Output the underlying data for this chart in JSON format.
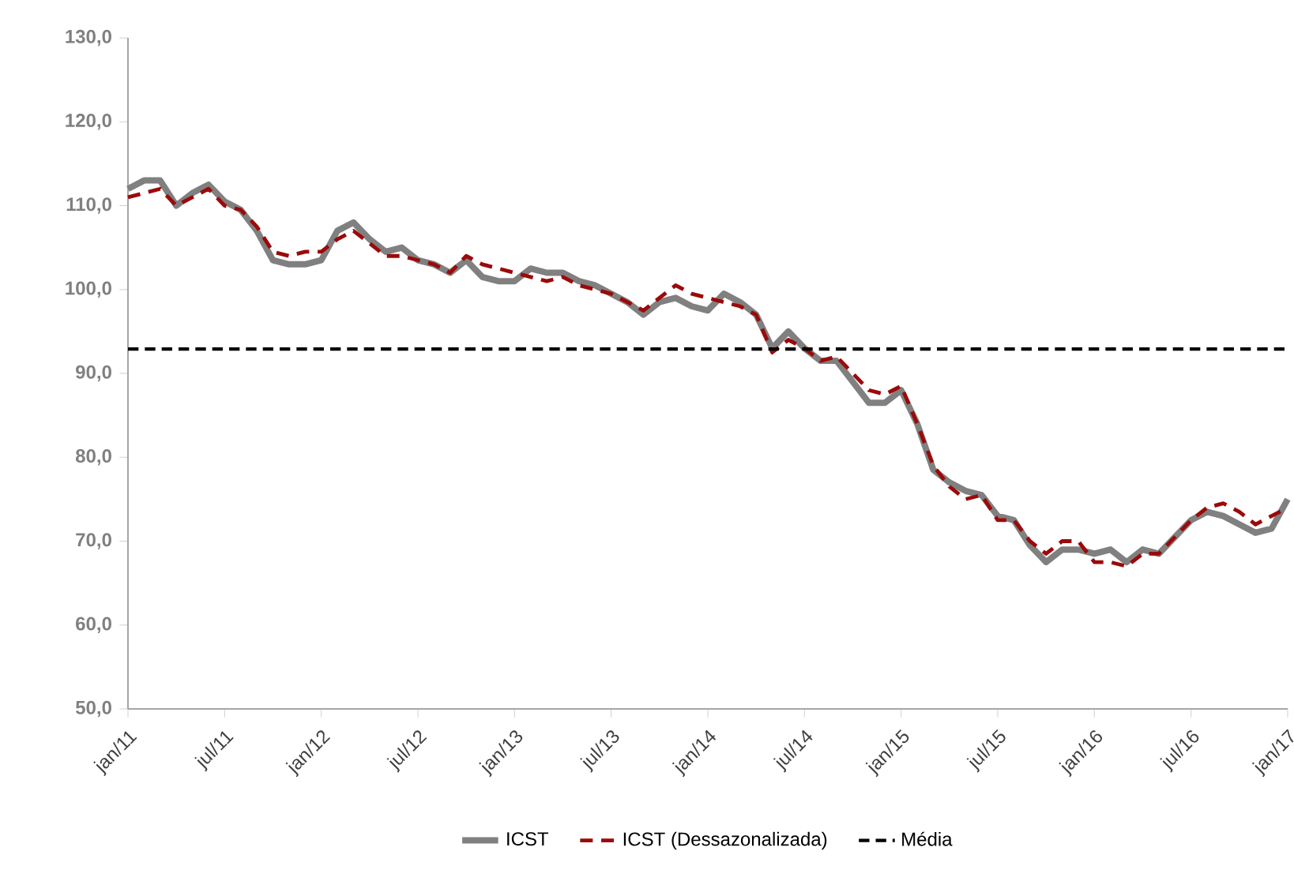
{
  "chart_data": {
    "type": "line",
    "categories": [
      "jan/11",
      null,
      null,
      null,
      null,
      null,
      "jul/11",
      null,
      null,
      null,
      null,
      null,
      "jan/12",
      null,
      null,
      null,
      null,
      null,
      "jul/12",
      null,
      null,
      null,
      null,
      null,
      "jan/13",
      null,
      null,
      null,
      null,
      null,
      "jul/13",
      null,
      null,
      null,
      null,
      null,
      "jan/14",
      null,
      null,
      null,
      null,
      null,
      "jul/14",
      null,
      null,
      null,
      null,
      null,
      "jan/15",
      null,
      null,
      null,
      null,
      null,
      "jul/15",
      null,
      null,
      null,
      null,
      null,
      "jan/16",
      null,
      null,
      null,
      null,
      null,
      "jul/16",
      null,
      null,
      null,
      null,
      null,
      "jan/17"
    ],
    "series": [
      {
        "name": "ICST",
        "color": "#808080",
        "line_style": "solid",
        "values": [
          112,
          113,
          113,
          110,
          111.5,
          112.5,
          110.5,
          109.5,
          107,
          103.5,
          103,
          103,
          103.5,
          107,
          108,
          106,
          104.5,
          105,
          103.5,
          103,
          102,
          103.5,
          101.5,
          101,
          101,
          102.5,
          102,
          102,
          101,
          100.5,
          99.5,
          98.5,
          97,
          98.5,
          99,
          98,
          97.5,
          99.5,
          98.5,
          97,
          93,
          95,
          93,
          91.5,
          91.5,
          89,
          86.5,
          86.5,
          88,
          84,
          78.5,
          77,
          76,
          75.5,
          73,
          72.5,
          69.5,
          67.5,
          69,
          69,
          68.5,
          69,
          67.5,
          69,
          68.5,
          70.5,
          72.5,
          73.5,
          73,
          72,
          71,
          71.5,
          75
        ]
      },
      {
        "name": "ICST (Dessazonalizada)",
        "color": "#9b0a0a",
        "line_style": "dashed",
        "values": [
          111,
          111.5,
          112,
          110,
          111,
          112,
          110,
          109.5,
          107.5,
          104.5,
          104,
          104.5,
          104.5,
          106,
          107,
          105.5,
          104,
          104,
          103.5,
          103,
          102,
          104,
          103,
          102.5,
          102,
          101.5,
          101,
          101.5,
          100.5,
          100,
          99.5,
          98.5,
          97.5,
          99,
          100.5,
          99.5,
          99,
          98.5,
          98,
          97,
          92.5,
          94,
          93,
          91.5,
          92,
          90,
          88,
          87.5,
          88.5,
          84,
          79,
          76.5,
          75,
          75.5,
          72.5,
          72.5,
          70,
          68.5,
          70,
          70,
          67.5,
          67.5,
          67,
          68.5,
          68.5,
          70.5,
          72.5,
          74,
          74.5,
          73.5,
          72,
          73,
          74
        ]
      }
    ],
    "ref_lines": [
      {
        "axis": "y",
        "value": 92.9,
        "label": "Média",
        "color": "#000000",
        "line_style": "dashed"
      }
    ],
    "ylim": [
      50,
      130
    ],
    "yticks": [
      {
        "value": 50,
        "label": "50,0"
      },
      {
        "value": 60,
        "label": "60,0"
      },
      {
        "value": 70,
        "label": "70,0"
      },
      {
        "value": 80,
        "label": "80,0"
      },
      {
        "value": 90,
        "label": "90,0"
      },
      {
        "value": 100,
        "label": "100,0"
      },
      {
        "value": 110,
        "label": "110,0"
      },
      {
        "value": 120,
        "label": "120,0"
      },
      {
        "value": 130,
        "label": "130,0"
      }
    ],
    "grid": false,
    "legend": "bottom"
  }
}
